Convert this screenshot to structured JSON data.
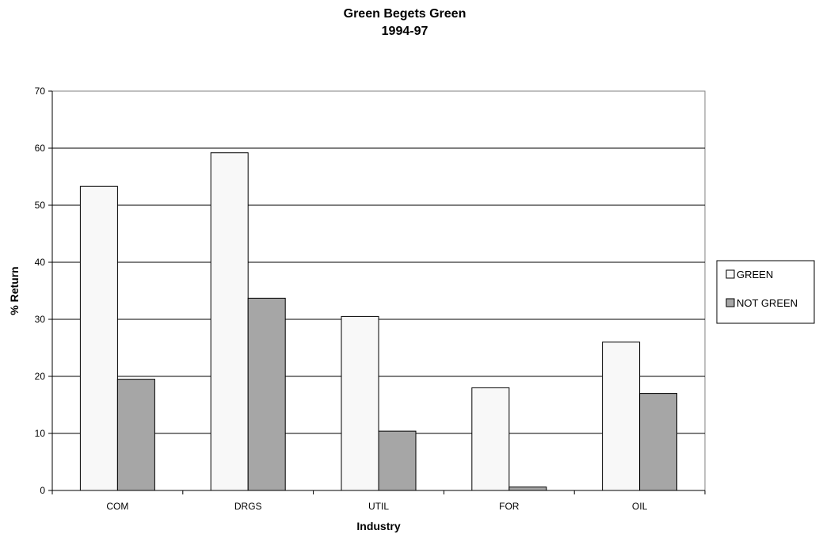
{
  "chart_data": {
    "type": "bar",
    "title": "Green Begets Green",
    "subtitle": "1994-97",
    "xlabel": "Industry",
    "ylabel": "% Return",
    "categories": [
      "COM",
      "DRGS",
      "UTIL",
      "FOR",
      "OIL"
    ],
    "series": [
      {
        "name": "GREEN",
        "values": [
          53.3,
          59.2,
          30.5,
          18.0,
          26.0
        ],
        "color": "#f8f8f8"
      },
      {
        "name": "NOT GREEN",
        "values": [
          19.5,
          33.7,
          10.4,
          0.6,
          17.0
        ],
        "color": "#a6a6a6"
      }
    ],
    "ylim": [
      0,
      70
    ],
    "yticks": [
      0,
      10,
      20,
      30,
      40,
      50,
      60,
      70
    ],
    "grid": true,
    "legend": "right"
  }
}
